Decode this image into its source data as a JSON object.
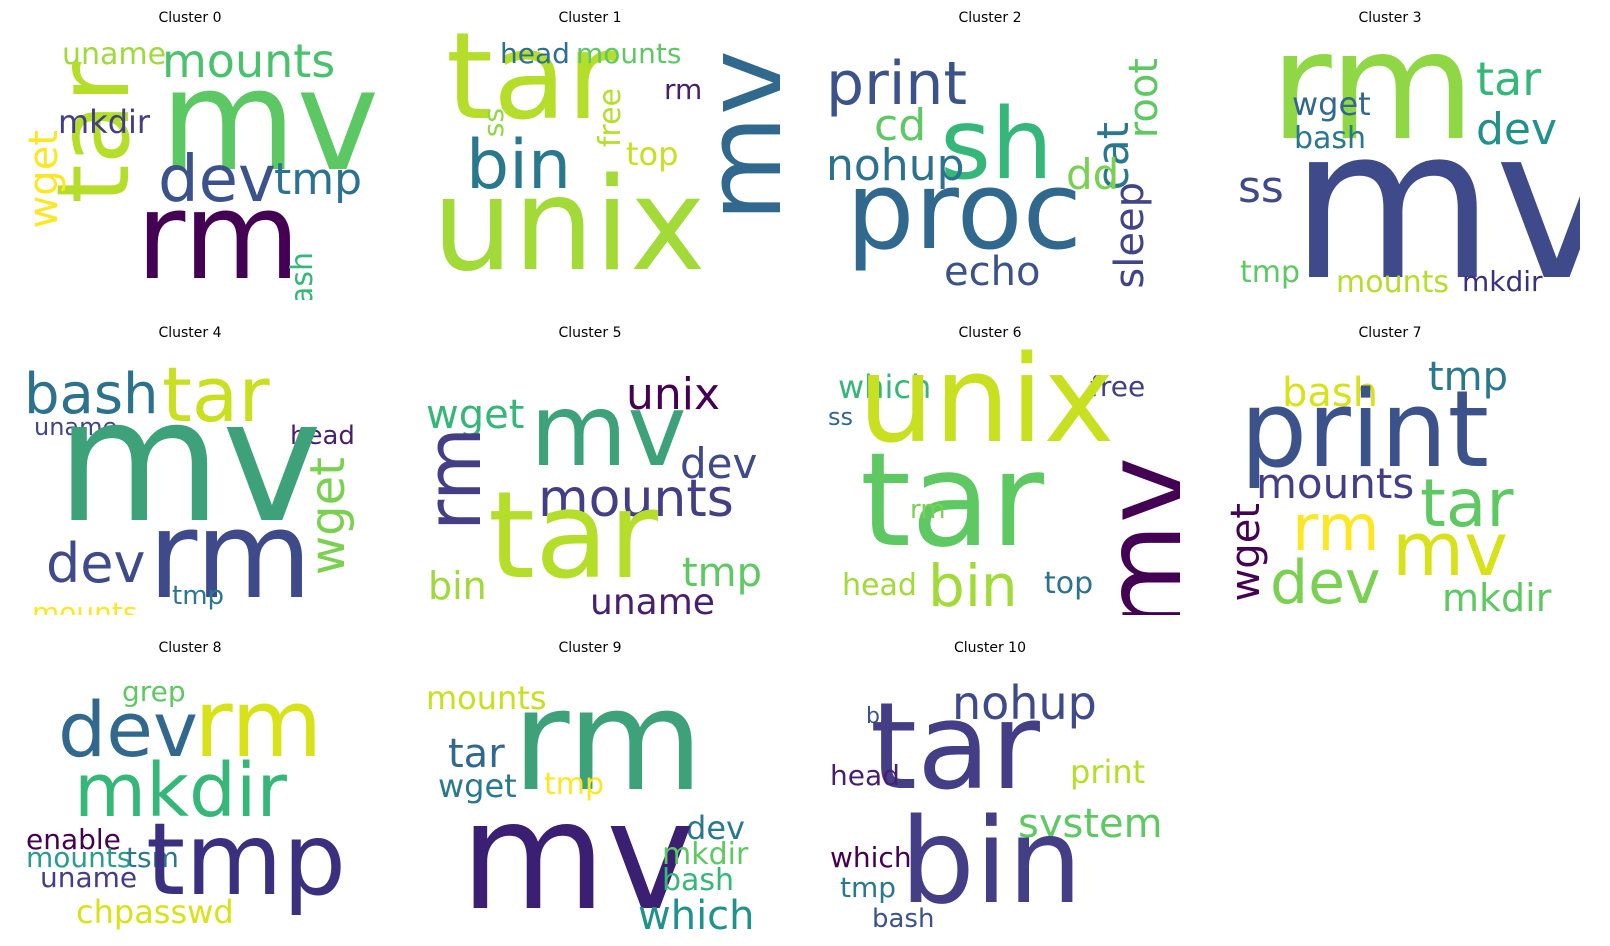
{
  "chart_data": [
    {
      "type": "wordcloud",
      "title": "Cluster 0",
      "words": [
        {
          "text": "uname",
          "color": "#9fda3a"
        },
        {
          "text": "mounts",
          "color": "#4ac16d"
        },
        {
          "text": "mv",
          "color": "#5cc863"
        },
        {
          "text": "tar",
          "color": "#b5de2b"
        },
        {
          "text": "mkdir",
          "color": "#433e85"
        },
        {
          "text": "wget",
          "color": "#fde725"
        },
        {
          "text": "dev",
          "color": "#3b528b"
        },
        {
          "text": "tmp",
          "color": "#2c728e"
        },
        {
          "text": "rm",
          "color": "#440154"
        },
        {
          "text": "bash",
          "color": "#35b779"
        }
      ]
    },
    {
      "type": "wordcloud",
      "title": "Cluster 1",
      "words": [
        {
          "text": "tar",
          "color": "#b5de2b"
        },
        {
          "text": "head",
          "color": "#2e6e8e"
        },
        {
          "text": "mounts",
          "color": "#5ec962"
        },
        {
          "text": "mv",
          "color": "#31688e"
        },
        {
          "text": "rm",
          "color": "#481f70"
        },
        {
          "text": "ss",
          "color": "#8fd744"
        },
        {
          "text": "free",
          "color": "#b5de2b"
        },
        {
          "text": "top",
          "color": "#c8e020"
        },
        {
          "text": "bin",
          "color": "#2a788e"
        },
        {
          "text": "unix",
          "color": "#a2da37"
        }
      ]
    },
    {
      "type": "wordcloud",
      "title": "Cluster 2",
      "words": [
        {
          "text": "print",
          "color": "#3b528b"
        },
        {
          "text": "cd",
          "color": "#5ec962"
        },
        {
          "text": "sh",
          "color": "#35b779"
        },
        {
          "text": "nohup",
          "color": "#2c728e"
        },
        {
          "text": "cat",
          "color": "#2a788e"
        },
        {
          "text": "root",
          "color": "#5ec962"
        },
        {
          "text": "dd",
          "color": "#7ad151"
        },
        {
          "text": "sleep",
          "color": "#414487"
        },
        {
          "text": "proc",
          "color": "#31688e"
        },
        {
          "text": "echo",
          "color": "#3b528b"
        }
      ]
    },
    {
      "type": "wordcloud",
      "title": "Cluster 3",
      "words": [
        {
          "text": "rm",
          "color": "#8fd744"
        },
        {
          "text": "tar",
          "color": "#35b779"
        },
        {
          "text": "wget",
          "color": "#31688e"
        },
        {
          "text": "dev",
          "color": "#21918c"
        },
        {
          "text": "bash",
          "color": "#2a788e"
        },
        {
          "text": "ss",
          "color": "#3e4a89"
        },
        {
          "text": "mv",
          "color": "#3e4a89"
        },
        {
          "text": "tmp",
          "color": "#5ec962"
        },
        {
          "text": "mounts",
          "color": "#b5de2b"
        },
        {
          "text": "mkdir",
          "color": "#3b2f80"
        }
      ]
    },
    {
      "type": "wordcloud",
      "title": "Cluster 4",
      "words": [
        {
          "text": "bash",
          "color": "#2c728e"
        },
        {
          "text": "tar",
          "color": "#c8e020"
        },
        {
          "text": "uname",
          "color": "#414487"
        },
        {
          "text": "head",
          "color": "#481f70"
        },
        {
          "text": "mv",
          "color": "#3da17a"
        },
        {
          "text": "wget",
          "color": "#7ad151"
        },
        {
          "text": "dev",
          "color": "#3e4a89"
        },
        {
          "text": "rm",
          "color": "#3e4a89"
        },
        {
          "text": "tmp",
          "color": "#2a788e"
        },
        {
          "text": "mounts",
          "color": "#fde725"
        }
      ]
    },
    {
      "type": "wordcloud",
      "title": "Cluster 5",
      "words": [
        {
          "text": "unix",
          "color": "#440154"
        },
        {
          "text": "wget",
          "color": "#35b779"
        },
        {
          "text": "mv",
          "color": "#3da17a"
        },
        {
          "text": "dev",
          "color": "#3e4a89"
        },
        {
          "text": "rm",
          "color": "#433e85"
        },
        {
          "text": "mounts",
          "color": "#433e85"
        },
        {
          "text": "tar",
          "color": "#b5de2b"
        },
        {
          "text": "bin",
          "color": "#9fda3a"
        },
        {
          "text": "tmp",
          "color": "#5ec962"
        },
        {
          "text": "uname",
          "color": "#481f70"
        }
      ]
    },
    {
      "type": "wordcloud",
      "title": "Cluster 6",
      "words": [
        {
          "text": "which",
          "color": "#35b779"
        },
        {
          "text": "free",
          "color": "#433e85"
        },
        {
          "text": "ss",
          "color": "#31688e"
        },
        {
          "text": "unix",
          "color": "#c8e020"
        },
        {
          "text": "tar",
          "color": "#5ec962"
        },
        {
          "text": "rm",
          "color": "#7ad151"
        },
        {
          "text": "mv",
          "color": "#440154"
        },
        {
          "text": "head",
          "color": "#a2da37"
        },
        {
          "text": "bin",
          "color": "#a2da37"
        },
        {
          "text": "top",
          "color": "#2c728e"
        }
      ]
    },
    {
      "type": "wordcloud",
      "title": "Cluster 7",
      "words": [
        {
          "text": "bash",
          "color": "#d8e219"
        },
        {
          "text": "tmp",
          "color": "#2a788e"
        },
        {
          "text": "print",
          "color": "#3b528b"
        },
        {
          "text": "mounts",
          "color": "#433e85"
        },
        {
          "text": "tar",
          "color": "#5ec962"
        },
        {
          "text": "wget",
          "color": "#440154"
        },
        {
          "text": "rm",
          "color": "#fde725"
        },
        {
          "text": "mv",
          "color": "#d8e219"
        },
        {
          "text": "dev",
          "color": "#7ad151"
        },
        {
          "text": "mkdir",
          "color": "#5ec962"
        }
      ]
    },
    {
      "type": "wordcloud",
      "title": "Cluster 8",
      "words": [
        {
          "text": "grep",
          "color": "#5ec962"
        },
        {
          "text": "dev",
          "color": "#31688e"
        },
        {
          "text": "rm",
          "color": "#d8e219"
        },
        {
          "text": "mkdir",
          "color": "#35b779"
        },
        {
          "text": "enable",
          "color": "#440154"
        },
        {
          "text": "mounts",
          "color": "#2a9d8f"
        },
        {
          "text": "tsm",
          "color": "#2a788e"
        },
        {
          "text": "tmp",
          "color": "#3b2f80"
        },
        {
          "text": "uname",
          "color": "#433e85"
        },
        {
          "text": "chpasswd",
          "color": "#d8e219"
        }
      ]
    },
    {
      "type": "wordcloud",
      "title": "Cluster 9",
      "words": [
        {
          "text": "mounts",
          "color": "#c8e020"
        },
        {
          "text": "rm",
          "color": "#3da17a"
        },
        {
          "text": "tar",
          "color": "#31688e"
        },
        {
          "text": "wget",
          "color": "#2a788e"
        },
        {
          "text": "tmp",
          "color": "#fde725"
        },
        {
          "text": "dev",
          "color": "#2a788e"
        },
        {
          "text": "mv",
          "color": "#3b1f73"
        },
        {
          "text": "mkdir",
          "color": "#5ec962"
        },
        {
          "text": "bash",
          "color": "#35b779"
        },
        {
          "text": "which",
          "color": "#21918c"
        }
      ]
    },
    {
      "type": "wordcloud",
      "title": "Cluster 10",
      "words": [
        {
          "text": "nohup",
          "color": "#3e4a89"
        },
        {
          "text": "bs",
          "color": "#3b528b"
        },
        {
          "text": "tar",
          "color": "#433e85"
        },
        {
          "text": "head",
          "color": "#481f70"
        },
        {
          "text": "print",
          "color": "#b5de2b"
        },
        {
          "text": "system",
          "color": "#5ec962"
        },
        {
          "text": "which",
          "color": "#440154"
        },
        {
          "text": "bin",
          "color": "#433e85"
        },
        {
          "text": "tmp",
          "color": "#2a788e"
        },
        {
          "text": "bash",
          "color": "#3b528b"
        }
      ]
    }
  ]
}
